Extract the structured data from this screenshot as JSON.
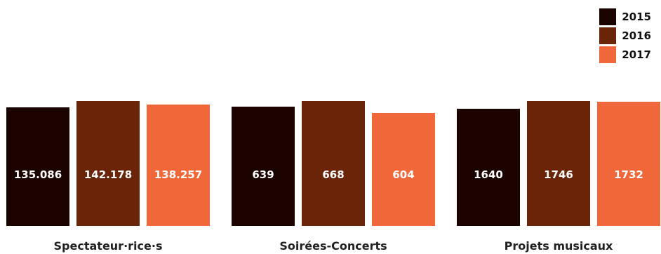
{
  "chart_data": {
    "type": "bar",
    "groups": [
      {
        "category": "Spectateur·rice·s",
        "series": [
          {
            "name": "2015",
            "value": 135086,
            "label": "135.086"
          },
          {
            "name": "2016",
            "value": 142178,
            "label": "142.178"
          },
          {
            "name": "2017",
            "value": 138257,
            "label": "138.257"
          }
        ]
      },
      {
        "category": "Soirées-Concerts",
        "series": [
          {
            "name": "2015",
            "value": 639,
            "label": "639"
          },
          {
            "name": "2016",
            "value": 668,
            "label": "668"
          },
          {
            "name": "2017",
            "value": 604,
            "label": "604"
          }
        ]
      },
      {
        "category": "Projets musicaux",
        "series": [
          {
            "name": "2015",
            "value": 1640,
            "label": "1640"
          },
          {
            "name": "2016",
            "value": 1746,
            "label": "1746"
          },
          {
            "name": "2017",
            "value": 1732,
            "label": "1732"
          }
        ]
      }
    ],
    "legend": [
      {
        "name": "2015",
        "color": "#1b0300"
      },
      {
        "name": "2016",
        "color": "#6a2408"
      },
      {
        "name": "2017",
        "color": "#f0683a"
      }
    ],
    "legend_position": "top-right",
    "grid": false
  }
}
